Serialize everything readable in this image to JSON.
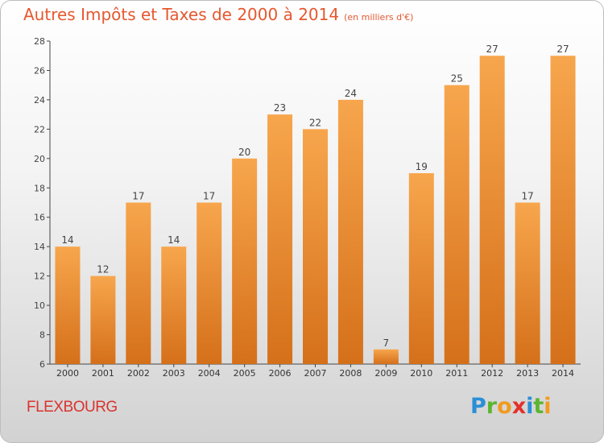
{
  "header": {
    "title": "Autres Impôts et Taxes de 2000 à 2014",
    "subtitle": "(en milliers d'€)"
  },
  "footer": {
    "city": "FLEXBOURG",
    "logo_letters": [
      "P",
      "r",
      "o",
      "x",
      "i",
      "t",
      "i"
    ]
  },
  "colors": {
    "bar_top": "#f7a64d",
    "bar_bottom": "#d5701a",
    "accent": "#e5582f"
  },
  "chart_data": {
    "type": "bar",
    "title": "Autres Impôts et Taxes de 2000 à 2014",
    "subtitle": "(en milliers d'€)",
    "categories": [
      "2000",
      "2001",
      "2002",
      "2003",
      "2004",
      "2005",
      "2006",
      "2007",
      "2008",
      "2009",
      "2010",
      "2011",
      "2012",
      "2013",
      "2014"
    ],
    "values": [
      14,
      12,
      17,
      14,
      17,
      20,
      23,
      22,
      24,
      7,
      19,
      25,
      27,
      17,
      27
    ],
    "ylim": [
      6,
      28
    ],
    "yticks": [
      6,
      8,
      10,
      12,
      14,
      16,
      18,
      20,
      22,
      24,
      26,
      28
    ],
    "grid": false,
    "data_labels": true
  }
}
